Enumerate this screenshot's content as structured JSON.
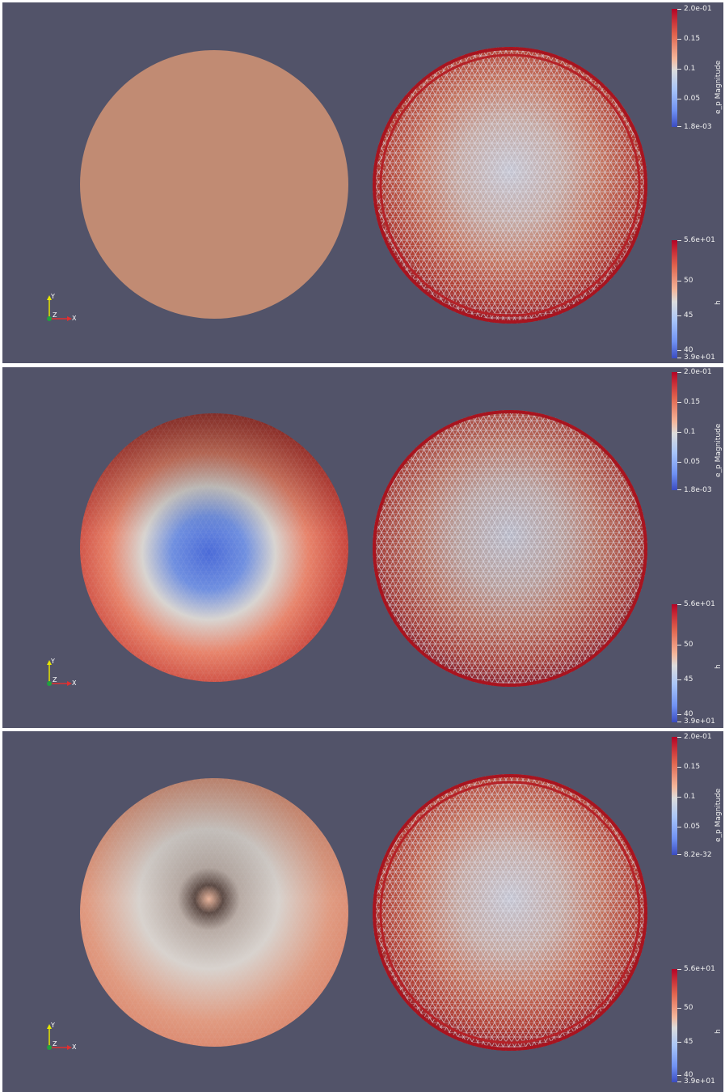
{
  "panels": [
    {
      "ep_colorbar": {
        "title": "e_p Magnitude",
        "max_label": "2.0e-01",
        "ticks": [
          "0.15",
          "0.1",
          "0.05"
        ],
        "min_label": "1.8e-03"
      },
      "h_colorbar": {
        "title": "h",
        "max_label": "5.6e+01",
        "ticks": [
          "50",
          "45",
          "40"
        ],
        "min_label": "3.9e+01"
      },
      "left_sphere_style": "uniform",
      "axes": {
        "y": "Y",
        "z": "Z",
        "x": "X"
      }
    },
    {
      "ep_colorbar": {
        "title": "e_p Magnitude",
        "max_label": "2.0e-01",
        "ticks": [
          "0.15",
          "0.1",
          "0.05"
        ],
        "min_label": "1.8e-03"
      },
      "h_colorbar": {
        "title": "h",
        "max_label": "5.6e+01",
        "ticks": [
          "50",
          "45",
          "40"
        ],
        "min_label": "3.9e+01"
      },
      "left_sphere_style": "blue-center",
      "axes": {
        "y": "Y",
        "z": "Z",
        "x": "X"
      }
    },
    {
      "ep_colorbar": {
        "title": "e_p Magnitude",
        "max_label": "2.0e-01",
        "ticks": [
          "0.15",
          "0.1",
          "0.05"
        ],
        "min_label": "8.2e-32"
      },
      "h_colorbar": {
        "title": "h",
        "max_label": "5.6e+01",
        "ticks": [
          "50",
          "45",
          "40"
        ],
        "min_label": "3.9e+01"
      },
      "left_sphere_style": "pale-center",
      "axes": {
        "y": "Y",
        "z": "Z",
        "x": "X"
      }
    }
  ],
  "colors": {
    "background": "#525369",
    "uniform_sphere": "#c18b73",
    "colormap_high": "#b40426",
    "colormap_mid": "#dcdddd",
    "colormap_low": "#3b4cc0"
  }
}
